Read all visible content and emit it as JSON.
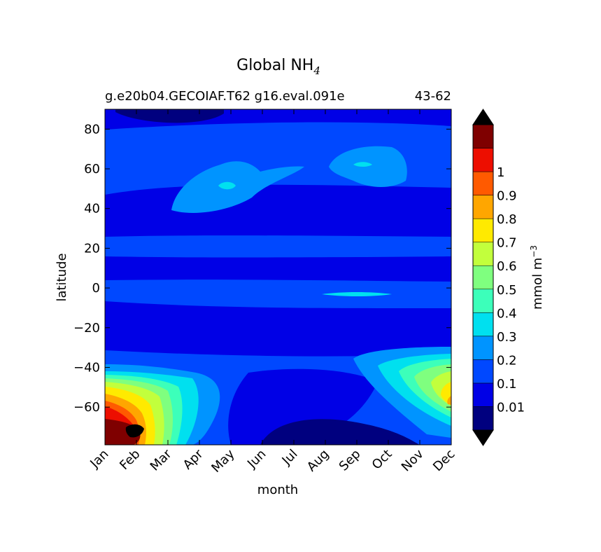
{
  "chart_data": {
    "type": "heatmap",
    "title": "Global NH",
    "title_subscript": "4",
    "subtitle_left": "g.e20b04.GECOIAF.T62 g16.eval.091e",
    "subtitle_right": "43-62",
    "xlabel": "month",
    "ylabel": "latitude",
    "x_ticks": [
      "Jan",
      "Feb",
      "Mar",
      "Apr",
      "May",
      "Jun",
      "Jul",
      "Aug",
      "Sep",
      "Oct",
      "Nov",
      "Dec"
    ],
    "y_ticks": [
      80,
      60,
      40,
      20,
      0,
      -20,
      -40,
      -60
    ],
    "y_tick_labels": [
      "80",
      "60",
      "40",
      "20",
      "0",
      "−20",
      "−40",
      "−60"
    ],
    "ylim": [
      -79,
      90
    ],
    "colorbar": {
      "label": "mmol m",
      "label_superscript": "−3",
      "levels": [
        0.01,
        0.1,
        0.2,
        0.3,
        0.4,
        0.5,
        0.6,
        0.7,
        0.8,
        0.9,
        1
      ],
      "tick_labels": [
        "0.01",
        "0.1",
        "0.2",
        "0.3",
        "0.4",
        "0.5",
        "0.6",
        "0.7",
        "0.8",
        "0.9",
        "1"
      ],
      "colors": [
        "#00007f",
        "#0000e6",
        "#0048ff",
        "#0094ff",
        "#00e0ef",
        "#3cffba",
        "#7fff7f",
        "#c2ff3c",
        "#ffea00",
        "#ffa600",
        "#ff5a00",
        "#ed0e00",
        "#7f0000"
      ],
      "extend": "both",
      "under_color": "#000000",
      "over_color": "#000000"
    },
    "series": [
      {
        "name": "",
        "x": "Jan",
        "lat": [
          -78,
          -70,
          -60,
          -50,
          -40,
          -30,
          -20,
          0,
          20,
          40,
          60,
          85
        ],
        "values": [
          0.95,
          0.9,
          0.8,
          0.6,
          0.25,
          0.15,
          0.12,
          0.15,
          0.12,
          0.15,
          0.15,
          0.1
        ]
      },
      {
        "name": "",
        "x": "Feb",
        "lat": [
          -78,
          -70,
          -60,
          -50,
          -40,
          -30,
          -20,
          0,
          20,
          40,
          60,
          85
        ],
        "values": [
          1.1,
          1.05,
          0.85,
          0.55,
          0.3,
          0.15,
          0.12,
          0.15,
          0.12,
          0.15,
          0.15,
          0.05
        ]
      },
      {
        "name": "",
        "x": "Mar",
        "lat": [
          -78,
          -70,
          -60,
          -50,
          -40,
          -30,
          -20,
          0,
          20,
          40,
          60,
          85
        ],
        "values": [
          0.6,
          0.55,
          0.45,
          0.35,
          0.25,
          0.15,
          0.12,
          0.15,
          0.12,
          0.18,
          0.18,
          0.12
        ]
      },
      {
        "name": "",
        "x": "Apr",
        "lat": [
          -78,
          -70,
          -60,
          -50,
          -40,
          -30,
          -20,
          0,
          20,
          40,
          60,
          85
        ],
        "values": [
          0.15,
          0.25,
          0.3,
          0.3,
          0.25,
          0.15,
          0.12,
          0.15,
          0.12,
          0.25,
          0.25,
          0.12
        ]
      },
      {
        "name": "",
        "x": "May",
        "lat": [
          -78,
          -70,
          -60,
          -50,
          -40,
          -30,
          -20,
          0,
          20,
          40,
          60,
          85
        ],
        "values": [
          0.15,
          0.2,
          0.2,
          0.2,
          0.15,
          0.12,
          0.12,
          0.15,
          0.12,
          0.25,
          0.3,
          0.12
        ]
      },
      {
        "name": "",
        "x": "Jun",
        "lat": [
          -78,
          -70,
          -60,
          -50,
          -40,
          -30,
          -20,
          0,
          20,
          40,
          60,
          85
        ],
        "values": [
          0.1,
          0.12,
          0.12,
          0.15,
          0.12,
          0.12,
          0.12,
          0.15,
          0.12,
          0.2,
          0.2,
          0.12
        ]
      },
      {
        "name": "",
        "x": "Jul",
        "lat": [
          -78,
          -70,
          -60,
          -50,
          -40,
          -30,
          -20,
          0,
          20,
          40,
          60,
          85
        ],
        "values": [
          0.05,
          0.08,
          0.1,
          0.12,
          0.12,
          0.12,
          0.12,
          0.15,
          0.12,
          0.12,
          0.15,
          0.12
        ]
      },
      {
        "name": "",
        "x": "Aug",
        "lat": [
          -78,
          -70,
          -60,
          -50,
          -40,
          -30,
          -20,
          0,
          20,
          40,
          60,
          85
        ],
        "values": [
          0.05,
          0.05,
          0.08,
          0.12,
          0.12,
          0.12,
          0.12,
          0.18,
          0.12,
          0.12,
          0.15,
          0.15
        ]
      },
      {
        "name": "",
        "x": "Sep",
        "lat": [
          -78,
          -70,
          -60,
          -50,
          -40,
          -30,
          -20,
          0,
          20,
          40,
          60,
          85
        ],
        "values": [
          0.05,
          0.05,
          0.1,
          0.12,
          0.12,
          0.12,
          0.12,
          0.2,
          0.12,
          0.15,
          0.25,
          0.18
        ]
      },
      {
        "name": "",
        "x": "Oct",
        "lat": [
          -78,
          -70,
          -60,
          -50,
          -40,
          -30,
          -20,
          0,
          20,
          40,
          60,
          85
        ],
        "values": [
          0.05,
          0.12,
          0.18,
          0.22,
          0.2,
          0.12,
          0.12,
          0.15,
          0.12,
          0.15,
          0.22,
          0.15
        ]
      },
      {
        "name": "",
        "x": "Nov",
        "lat": [
          -78,
          -70,
          -60,
          -50,
          -40,
          -30,
          -20,
          0,
          20,
          40,
          60,
          85
        ],
        "values": [
          0.12,
          0.2,
          0.3,
          0.35,
          0.25,
          0.15,
          0.12,
          0.15,
          0.12,
          0.12,
          0.15,
          0.12
        ]
      },
      {
        "name": "",
        "x": "Dec",
        "lat": [
          -78,
          -70,
          -60,
          -50,
          -40,
          -30,
          -20,
          0,
          20,
          40,
          60,
          85
        ],
        "values": [
          0.2,
          0.35,
          0.65,
          0.6,
          0.3,
          0.15,
          0.12,
          0.15,
          0.12,
          0.12,
          0.12,
          0.1
        ]
      }
    ]
  }
}
